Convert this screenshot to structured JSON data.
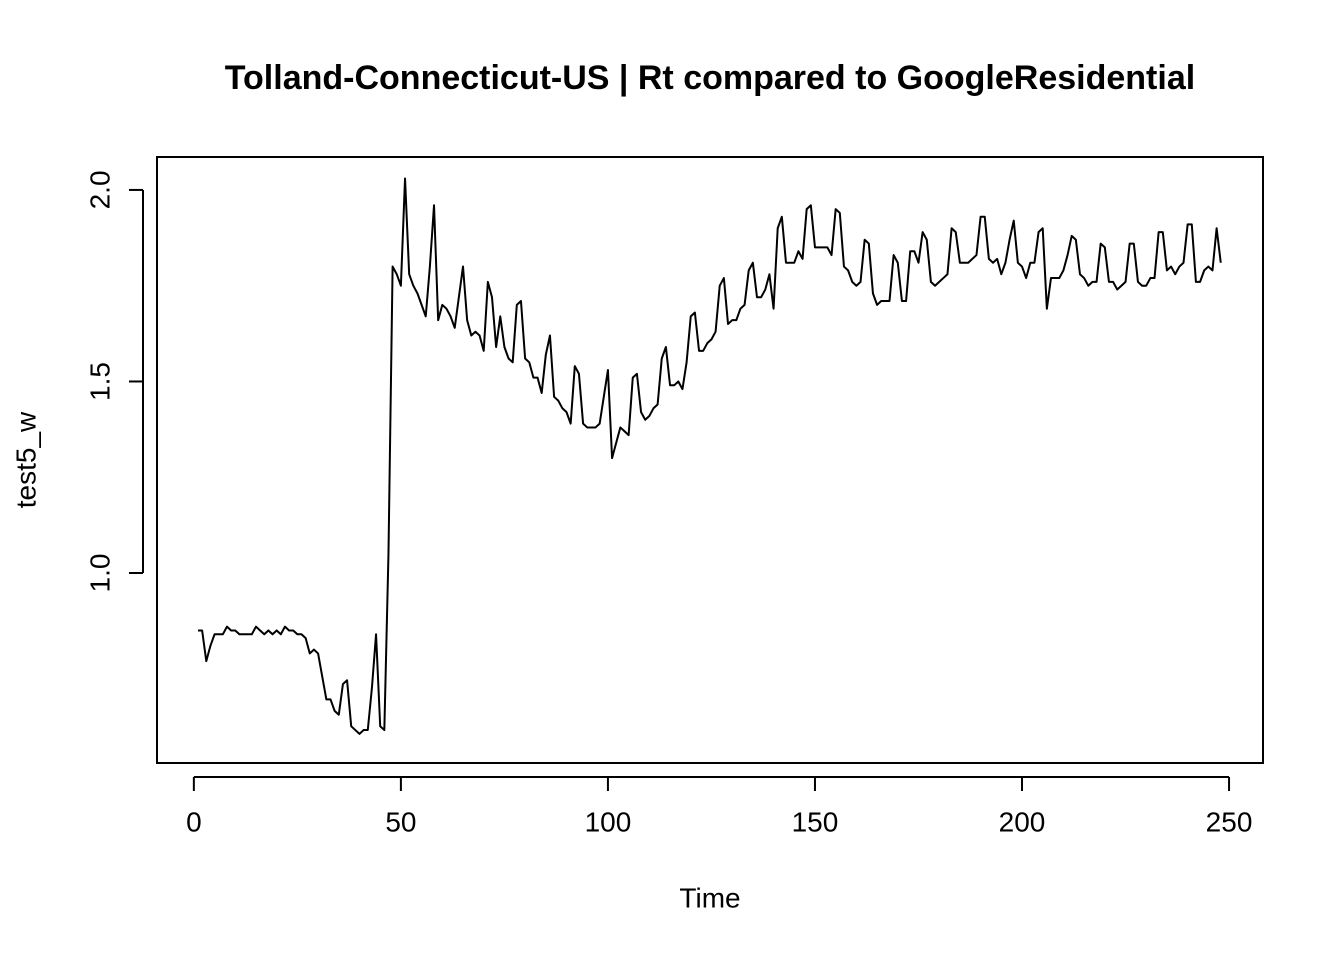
{
  "chart_data": {
    "type": "line",
    "title": "Tolland-Connecticut-US | Rt compared to GoogleResidential",
    "x_label": "Time",
    "y_label": "test5_w",
    "color": "#000000",
    "xlim": [
      -8.9,
      258.2
    ],
    "ylim": [
      0.504,
      2.086
    ],
    "xticks": [
      0,
      50,
      100,
      150,
      200,
      250
    ],
    "yticks": [
      {
        "value": 1,
        "label": "1.0"
      },
      1.5,
      {
        "value": 2,
        "label": "2.0"
      }
    ],
    "grid": false,
    "x": [
      1,
      2,
      3,
      4,
      5,
      6,
      7,
      8,
      9,
      10,
      11,
      12,
      13,
      14,
      15,
      16,
      17,
      18,
      19,
      20,
      21,
      22,
      23,
      24,
      25,
      26,
      27,
      28,
      29,
      30,
      31,
      32,
      33,
      34,
      35,
      36,
      37,
      38,
      39,
      40,
      41,
      42,
      43,
      44,
      45,
      46,
      47,
      48,
      49,
      50,
      51,
      52,
      53,
      54,
      55,
      56,
      57,
      58,
      59,
      60,
      61,
      62,
      63,
      64,
      65,
      66,
      67,
      68,
      69,
      70,
      71,
      72,
      73,
      74,
      75,
      76,
      77,
      78,
      79,
      80,
      81,
      82,
      83,
      84,
      85,
      86,
      87,
      88,
      89,
      90,
      91,
      92,
      93,
      94,
      95,
      96,
      97,
      98,
      99,
      100,
      101,
      102,
      103,
      104,
      105,
      106,
      107,
      108,
      109,
      110,
      111,
      112,
      113,
      114,
      115,
      116,
      117,
      118,
      119,
      120,
      121,
      122,
      123,
      124,
      125,
      126,
      127,
      128,
      129,
      130,
      131,
      132,
      133,
      134,
      135,
      136,
      137,
      138,
      139,
      140,
      141,
      142,
      143,
      144,
      145,
      146,
      147,
      148,
      149,
      150,
      151,
      152,
      153,
      154,
      155,
      156,
      157,
      158,
      159,
      160,
      161,
      162,
      163,
      164,
      165,
      166,
      167,
      168,
      169,
      170,
      171,
      172,
      173,
      174,
      175,
      176,
      177,
      178,
      179,
      180,
      181,
      182,
      183,
      184,
      185,
      186,
      187,
      188,
      189,
      190,
      191,
      192,
      193,
      194,
      195,
      196,
      197,
      198,
      199,
      200,
      201,
      202,
      203,
      204,
      205,
      206,
      207,
      208,
      209,
      210,
      211,
      212,
      213,
      214,
      215,
      216,
      217,
      218,
      219,
      220,
      221,
      222,
      223,
      224,
      225,
      226,
      227,
      228,
      229,
      230,
      231,
      232,
      233,
      234,
      235,
      236,
      237,
      238,
      239,
      240,
      241,
      242,
      243,
      244,
      245,
      246,
      247,
      248
    ],
    "values": [
      0.85,
      0.85,
      0.77,
      0.81,
      0.84,
      0.84,
      0.84,
      0.86,
      0.85,
      0.85,
      0.84,
      0.84,
      0.84,
      0.84,
      0.86,
      0.85,
      0.84,
      0.85,
      0.84,
      0.85,
      0.84,
      0.86,
      0.85,
      0.85,
      0.84,
      0.84,
      0.83,
      0.79,
      0.8,
      0.79,
      0.73,
      0.67,
      0.67,
      0.64,
      0.63,
      0.71,
      0.72,
      0.6,
      0.59,
      0.58,
      0.59,
      0.59,
      0.7,
      0.84,
      0.6,
      0.59,
      1.05,
      1.8,
      1.78,
      1.75,
      2.03,
      1.78,
      1.75,
      1.73,
      1.7,
      1.67,
      1.8,
      1.96,
      1.66,
      1.7,
      1.69,
      1.67,
      1.64,
      1.72,
      1.8,
      1.66,
      1.62,
      1.63,
      1.62,
      1.58,
      1.76,
      1.72,
      1.59,
      1.67,
      1.59,
      1.56,
      1.55,
      1.7,
      1.71,
      1.56,
      1.55,
      1.51,
      1.51,
      1.47,
      1.57,
      1.62,
      1.46,
      1.45,
      1.43,
      1.42,
      1.39,
      1.54,
      1.52,
      1.39,
      1.38,
      1.38,
      1.38,
      1.39,
      1.46,
      1.53,
      1.3,
      1.34,
      1.38,
      1.37,
      1.36,
      1.51,
      1.52,
      1.42,
      1.4,
      1.41,
      1.43,
      1.44,
      1.56,
      1.59,
      1.49,
      1.49,
      1.5,
      1.48,
      1.55,
      1.67,
      1.68,
      1.58,
      1.58,
      1.6,
      1.61,
      1.63,
      1.75,
      1.77,
      1.65,
      1.66,
      1.66,
      1.69,
      1.7,
      1.79,
      1.81,
      1.72,
      1.72,
      1.74,
      1.78,
      1.69,
      1.9,
      1.93,
      1.81,
      1.81,
      1.81,
      1.84,
      1.82,
      1.95,
      1.96,
      1.85,
      1.85,
      1.85,
      1.85,
      1.83,
      1.95,
      1.94,
      1.8,
      1.79,
      1.76,
      1.75,
      1.76,
      1.87,
      1.86,
      1.73,
      1.7,
      1.71,
      1.71,
      1.71,
      1.83,
      1.81,
      1.71,
      1.71,
      1.84,
      1.84,
      1.81,
      1.89,
      1.87,
      1.76,
      1.75,
      1.76,
      1.77,
      1.78,
      1.9,
      1.89,
      1.81,
      1.81,
      1.81,
      1.82,
      1.83,
      1.93,
      1.93,
      1.82,
      1.81,
      1.82,
      1.78,
      1.81,
      1.87,
      1.92,
      1.81,
      1.8,
      1.77,
      1.81,
      1.81,
      1.89,
      1.9,
      1.69,
      1.77,
      1.77,
      1.77,
      1.79,
      1.83,
      1.88,
      1.87,
      1.78,
      1.77,
      1.75,
      1.76,
      1.76,
      1.86,
      1.85,
      1.76,
      1.76,
      1.74,
      1.75,
      1.76,
      1.86,
      1.86,
      1.76,
      1.75,
      1.75,
      1.77,
      1.77,
      1.89,
      1.89,
      1.79,
      1.8,
      1.78,
      1.8,
      1.81,
      1.91,
      1.91,
      1.76,
      1.76,
      1.79,
      1.8,
      1.79,
      1.9,
      1.81
    ]
  }
}
